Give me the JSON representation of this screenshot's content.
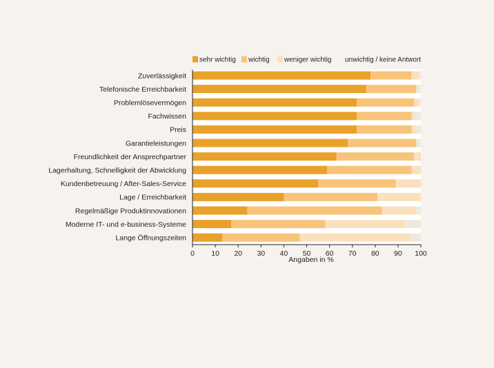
{
  "chart_data": {
    "type": "bar",
    "orientation": "horizontal",
    "stacked": true,
    "title": "",
    "xlabel": "Angaben in %",
    "ylabel": "",
    "xlim": [
      0,
      100
    ],
    "xticks": [
      0,
      10,
      20,
      30,
      40,
      50,
      60,
      70,
      80,
      90,
      100
    ],
    "legend_position": "top",
    "categories": [
      "Zuverlässigkeit",
      "Telefonische Erreichbarkeit",
      "Problemlösevermögen",
      "Fachwissen",
      "Preis",
      "Garantieleistungen",
      "Freundlichkeit der Ansprechpartner",
      "Lagerhaltung, Schnelligkeit der Abwicklung",
      "Kundenbetreuung / After-Sales-Service",
      "Lage / Erreichbarkeit",
      "Regelmäßige Produktinnovationen",
      "Moderne IT- und e-business-Systeme",
      "Lange Öffnungszeiten"
    ],
    "series": [
      {
        "name": "sehr wichtig",
        "color": "#e8a12a",
        "values": [
          78,
          76,
          72,
          72,
          72,
          68,
          63,
          59,
          55,
          40,
          24,
          17,
          13
        ]
      },
      {
        "name": "wichtig",
        "color": "#f8c47a",
        "values": [
          18,
          22,
          25,
          24,
          24,
          30,
          34,
          37,
          34,
          41,
          59,
          41,
          34
        ]
      },
      {
        "name": "weniger wichtig",
        "color": "#fbe0bd",
        "values": [
          3,
          0,
          2,
          1,
          2,
          0,
          3,
          4,
          11,
          19,
          15,
          35,
          48
        ]
      },
      {
        "name": "unwichtig / keine Antwort",
        "color": "#f1e8dc",
        "values": [
          1,
          2,
          1,
          3,
          2,
          2,
          0,
          0,
          0,
          0,
          2,
          7,
          5
        ]
      }
    ]
  }
}
